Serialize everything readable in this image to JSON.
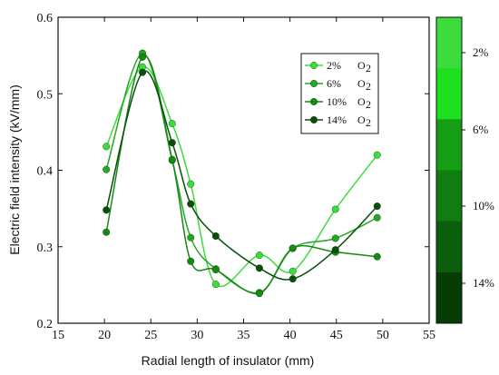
{
  "chart_data": {
    "type": "line",
    "title": "",
    "xlabel": "Radial length of insulator (mm)",
    "ylabel": "Electric field intensity (kV/mm)",
    "xlim": [
      15,
      55
    ],
    "ylim": [
      0.2,
      0.6
    ],
    "xticks": [
      "15",
      "20",
      "25",
      "30",
      "35",
      "40",
      "45",
      "50",
      "55"
    ],
    "yticks": [
      "0.2",
      "0.3",
      "0.4",
      "0.5",
      "0.6"
    ],
    "grid": false,
    "legend_position": "top-right",
    "legend_suffix": "O",
    "legend_suffix_sub": "2",
    "series": [
      {
        "name": "2%",
        "color": "#3ddc3d",
        "x": [
          20.2,
          24.1,
          27.3,
          29.3,
          32.0,
          36.7,
          40.3,
          44.9,
          49.4
        ],
        "y": [
          0.431,
          0.535,
          0.461,
          0.382,
          0.251,
          0.289,
          0.268,
          0.349,
          0.42
        ]
      },
      {
        "name": "6%",
        "color": "#22a822",
        "x": [
          20.2,
          24.1,
          27.3,
          29.3,
          32.0,
          36.7,
          40.3,
          44.9,
          49.4
        ],
        "y": [
          0.401,
          0.553,
          0.413,
          0.312,
          0.271,
          0.24,
          0.298,
          0.311,
          0.338
        ]
      },
      {
        "name": "10%",
        "color": "#138a13",
        "x": [
          20.2,
          24.1,
          27.3,
          29.3,
          32.0,
          36.7,
          40.3,
          44.9,
          49.4
        ],
        "y": [
          0.319,
          0.548,
          0.414,
          0.281,
          0.27,
          0.239,
          0.298,
          0.293,
          0.287
        ]
      },
      {
        "name": "14%",
        "color": "#0b4d0b",
        "x": [
          20.2,
          24.1,
          27.3,
          29.3,
          32.0,
          36.7,
          40.3,
          44.9,
          49.4
        ],
        "y": [
          0.348,
          0.528,
          0.436,
          0.356,
          0.314,
          0.272,
          0.258,
          0.296,
          0.353
        ]
      }
    ],
    "colorbar": {
      "labels": [
        "2%",
        "6%",
        "10%",
        "14%"
      ],
      "bands": [
        "#3ddc3d",
        "#1fe01f",
        "#159e15",
        "#0f7d0f",
        "#0b5e0b",
        "#063d06"
      ]
    }
  }
}
